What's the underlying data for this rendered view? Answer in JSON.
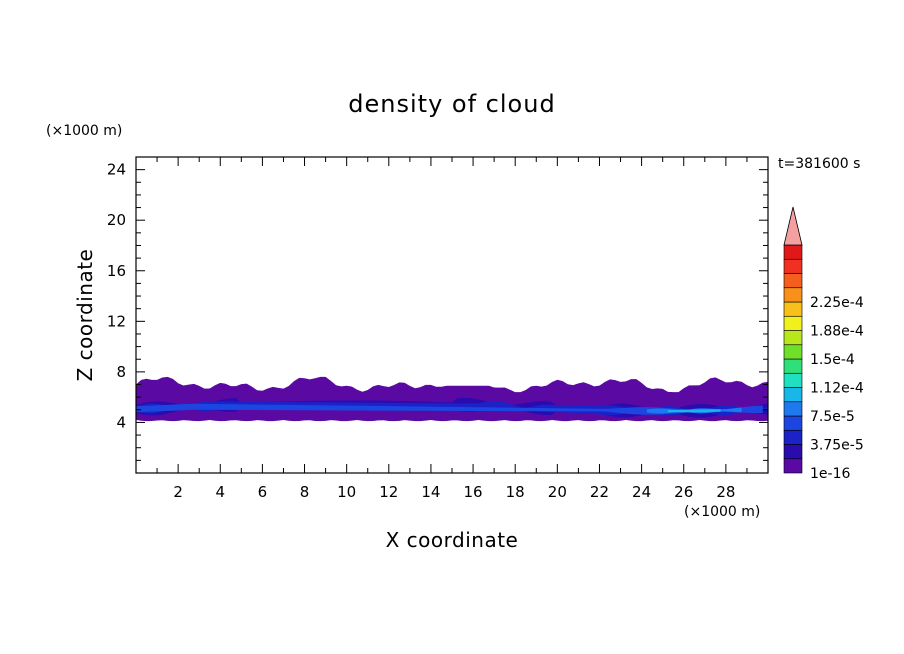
{
  "chart_data": {
    "type": "heatmap",
    "title": "density of cloud",
    "xlabel": "X coordinate",
    "ylabel": "Z coordinate",
    "x_unit": "(×1000 m)",
    "y_unit": "(×1000 m)",
    "time_label": "t=381600 s",
    "xlim": [
      0,
      30
    ],
    "ylim": [
      0,
      25
    ],
    "x_ticks": [
      "2",
      "4",
      "6",
      "8",
      "10",
      "12",
      "14",
      "16",
      "18",
      "20",
      "22",
      "24",
      "26",
      "28"
    ],
    "y_ticks": [
      "4",
      "8",
      "12",
      "16",
      "20",
      "24"
    ],
    "colorbar": {
      "levels": [
        "1e-16",
        "3.75e-5",
        "7.5e-5",
        "1.12e-4",
        "1.5e-4",
        "1.88e-4",
        "2.25e-4"
      ],
      "colors": [
        "#5a0aa3",
        "#2a0bb0",
        "#1a22c8",
        "#1d46e0",
        "#1e78ee",
        "#17b8e8",
        "#1fe0c0",
        "#2fe07a",
        "#6fe02a",
        "#b6e81c",
        "#f0f01c",
        "#f8c018",
        "#f8901a",
        "#f4601c",
        "#f03020",
        "#e01818"
      ],
      "extend_color": "#f4a0a0"
    },
    "cloud_layer": {
      "z_bottom": 4.2,
      "z_top_range": [
        6.4,
        7.6
      ],
      "core_z_range": [
        4.8,
        5.8
      ],
      "core_max_x_range": [
        24,
        29
      ]
    }
  }
}
